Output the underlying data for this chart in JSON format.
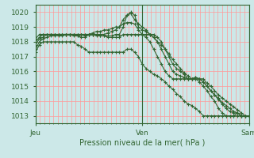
{
  "title": "Pression niveau de la mer( hPa )",
  "background_color": "#cce8e8",
  "grid_color": "#ff9999",
  "axis_color": "#336633",
  "line_color": "#336633",
  "ylim": [
    1012.5,
    1020.5
  ],
  "yticks": [
    1013,
    1014,
    1015,
    1016,
    1017,
    1018,
    1019,
    1020
  ],
  "xtick_labels": [
    "Jeu",
    "Ven",
    "Sam"
  ],
  "xtick_pos": [
    0,
    48,
    96
  ],
  "xlim": [
    0,
    96
  ],
  "series": [
    [
      1018.0,
      1018.3,
      1018.5,
      1018.5,
      1018.5,
      1018.5,
      1018.4,
      1018.4,
      1018.5,
      1018.5,
      1018.5,
      1018.4,
      1018.3,
      1018.3,
      1018.5,
      1018.5,
      1018.4,
      1018.4,
      1018.4,
      1018.4,
      1018.4,
      1018.5,
      1018.5,
      1019.0,
      1019.8,
      1020.0,
      1019.8,
      1019.0,
      1018.8,
      1018.7,
      1018.5,
      1018.3,
      1018.0,
      1017.8,
      1017.5,
      1017.2,
      1016.8,
      1016.5,
      1016.2,
      1015.9,
      1015.7,
      1015.5,
      1015.5,
      1015.3,
      1015.0,
      1014.7,
      1014.3,
      1014.0,
      1013.5,
      1013.2,
      1013.0,
      1013.0,
      1013.0,
      1013.2,
      1013.0,
      1013.0,
      1013.0
    ],
    [
      1018.2,
      1018.5,
      1018.5,
      1018.5,
      1018.5,
      1018.5,
      1018.5,
      1018.5,
      1018.5,
      1018.5,
      1018.4,
      1018.4,
      1018.5,
      1018.4,
      1018.5,
      1018.5,
      1018.5,
      1018.5,
      1018.5,
      1018.6,
      1018.7,
      1018.8,
      1019.0,
      1019.5,
      1019.8,
      1019.9,
      1019.5,
      1019.2,
      1019.0,
      1018.8,
      1018.5,
      1018.3,
      1018.0,
      1017.5,
      1017.0,
      1016.5,
      1016.0,
      1015.8,
      1015.7,
      1015.6,
      1015.5,
      1015.5,
      1015.6,
      1015.5,
      1015.3,
      1015.0,
      1014.7,
      1014.4,
      1014.1,
      1013.8,
      1013.5,
      1013.3,
      1013.2,
      1013.2,
      1013.0,
      1013.0,
      1013.0
    ],
    [
      1017.8,
      1018.2,
      1018.3,
      1018.5,
      1018.5,
      1018.5,
      1018.5,
      1018.5,
      1018.5,
      1018.5,
      1018.5,
      1018.5,
      1018.5,
      1018.5,
      1018.5,
      1018.5,
      1018.5,
      1018.4,
      1018.4,
      1018.3,
      1018.3,
      1018.3,
      1018.3,
      1018.5,
      1018.5,
      1018.5,
      1018.5,
      1018.5,
      1018.5,
      1018.5,
      1018.5,
      1018.5,
      1018.3,
      1018.0,
      1017.5,
      1017.0,
      1016.5,
      1016.2,
      1016.0,
      1015.8,
      1015.5,
      1015.5,
      1015.5,
      1015.5,
      1015.5,
      1015.2,
      1015.0,
      1014.7,
      1014.4,
      1014.2,
      1014.0,
      1013.8,
      1013.6,
      1013.4,
      1013.2,
      1013.0,
      1013.0
    ],
    [
      1017.5,
      1018.0,
      1018.2,
      1018.3,
      1018.4,
      1018.4,
      1018.5,
      1018.5,
      1018.5,
      1018.5,
      1018.5,
      1018.5,
      1018.5,
      1018.5,
      1018.5,
      1018.6,
      1018.7,
      1018.7,
      1018.8,
      1018.8,
      1018.9,
      1019.0,
      1019.0,
      1019.2,
      1019.3,
      1019.3,
      1019.2,
      1018.8,
      1018.5,
      1018.3,
      1018.0,
      1017.5,
      1017.0,
      1016.5,
      1016.0,
      1015.7,
      1015.5,
      1015.5,
      1015.5,
      1015.5,
      1015.5,
      1015.5,
      1015.6,
      1015.5,
      1015.3,
      1015.0,
      1014.7,
      1014.4,
      1014.2,
      1013.9,
      1013.7,
      1013.5,
      1013.3,
      1013.2,
      1013.0,
      1013.0,
      1013.0
    ],
    [
      1017.3,
      1017.8,
      1018.0,
      1018.0,
      1018.0,
      1018.0,
      1018.0,
      1018.0,
      1018.0,
      1018.0,
      1018.0,
      1017.8,
      1017.7,
      1017.5,
      1017.3,
      1017.3,
      1017.3,
      1017.3,
      1017.3,
      1017.3,
      1017.3,
      1017.3,
      1017.3,
      1017.3,
      1017.5,
      1017.5,
      1017.3,
      1017.0,
      1016.5,
      1016.2,
      1016.0,
      1015.8,
      1015.7,
      1015.5,
      1015.3,
      1015.0,
      1014.8,
      1014.5,
      1014.3,
      1014.0,
      1013.8,
      1013.7,
      1013.5,
      1013.3,
      1013.0,
      1013.0,
      1013.0,
      1013.0,
      1013.0,
      1013.0,
      1013.0,
      1013.0,
      1013.0,
      1013.0,
      1013.0,
      1013.0,
      1013.0
    ]
  ]
}
